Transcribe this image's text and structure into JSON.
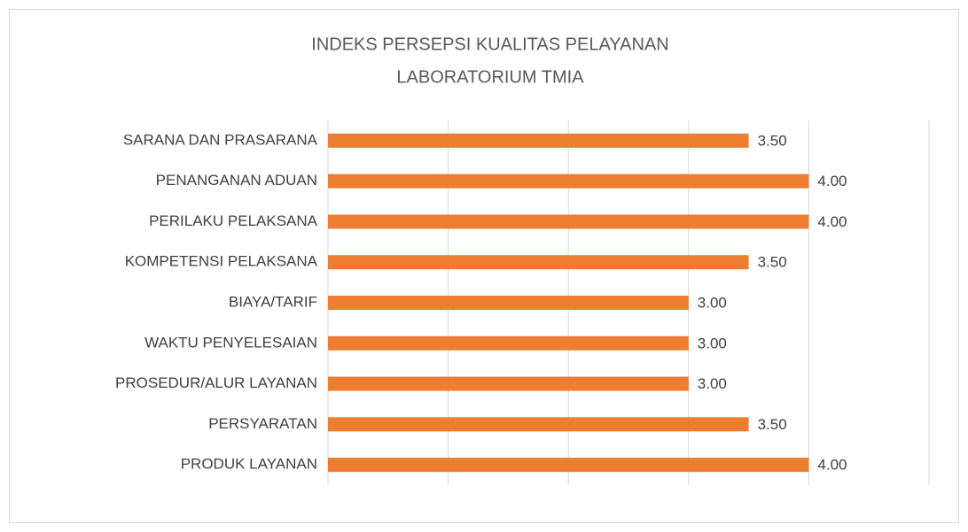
{
  "chart_data": {
    "type": "barh",
    "title": [
      "INDEKS PERSEPSI KUALITAS PELAYANAN",
      "LABORATORIUM TMIA"
    ],
    "categories": [
      "SARANA DAN PRASARANA",
      "PENANGANAN ADUAN",
      "PERILAKU PELAKSANA",
      "KOMPETENSI PELAKSANA",
      "BIAYA/TARIF",
      "WAKTU PENYELESAIAN",
      "PROSEDUR/ALUR LAYANAN",
      "PERSYARATAN",
      "PRODUK LAYANAN"
    ],
    "values": [
      3.5,
      4,
      4,
      3.5,
      3,
      3,
      3,
      3.5,
      4
    ],
    "value_labels": [
      "3.50",
      "4.00",
      "4.00",
      "3.50",
      "3.00",
      "3.00",
      "3.00",
      "3.50",
      "4.00"
    ],
    "color": "#ed7d31",
    "xlim": [
      0,
      5
    ],
    "xticks": [
      0,
      1,
      2,
      3,
      4,
      5
    ],
    "grid": true
  }
}
